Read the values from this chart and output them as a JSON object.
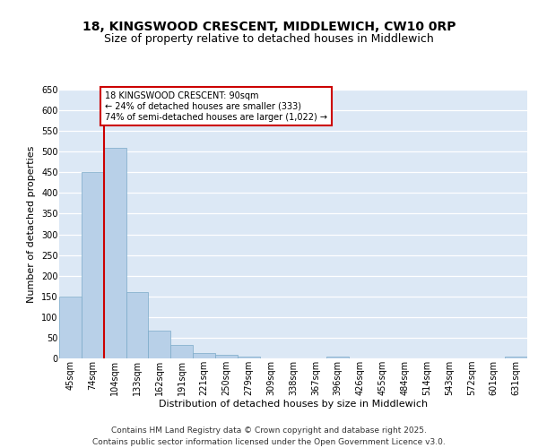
{
  "title1": "18, KINGSWOOD CRESCENT, MIDDLEWICH, CW10 0RP",
  "title2": "Size of property relative to detached houses in Middlewich",
  "xlabel": "Distribution of detached houses by size in Middlewich",
  "ylabel": "Number of detached properties",
  "categories": [
    "45sqm",
    "74sqm",
    "104sqm",
    "133sqm",
    "162sqm",
    "191sqm",
    "221sqm",
    "250sqm",
    "279sqm",
    "309sqm",
    "338sqm",
    "367sqm",
    "396sqm",
    "426sqm",
    "455sqm",
    "484sqm",
    "514sqm",
    "543sqm",
    "572sqm",
    "601sqm",
    "631sqm"
  ],
  "values": [
    150,
    450,
    510,
    160,
    68,
    32,
    12,
    8,
    5,
    0,
    0,
    0,
    5,
    0,
    0,
    0,
    0,
    0,
    0,
    0,
    5
  ],
  "bar_color": "#b8d0e8",
  "bar_edge_color": "#7aaac8",
  "vline_x": 1.5,
  "vline_color": "#cc0000",
  "annotation_text": "18 KINGSWOOD CRESCENT: 90sqm\n← 24% of detached houses are smaller (333)\n74% of semi-detached houses are larger (1,022) →",
  "annotation_box_color": "#ffffff",
  "annotation_box_edge": "#cc0000",
  "ylim": [
    0,
    650
  ],
  "yticks": [
    0,
    50,
    100,
    150,
    200,
    250,
    300,
    350,
    400,
    450,
    500,
    550,
    600,
    650
  ],
  "background_color": "#dce8f5",
  "grid_color": "#ffffff",
  "fig_bg_color": "#ffffff",
  "footer": "Contains HM Land Registry data © Crown copyright and database right 2025.\nContains public sector information licensed under the Open Government Licence v3.0.",
  "title1_fontsize": 10,
  "title2_fontsize": 9,
  "xlabel_fontsize": 8,
  "ylabel_fontsize": 8,
  "tick_fontsize": 7,
  "annotation_fontsize": 7,
  "footer_fontsize": 6.5
}
